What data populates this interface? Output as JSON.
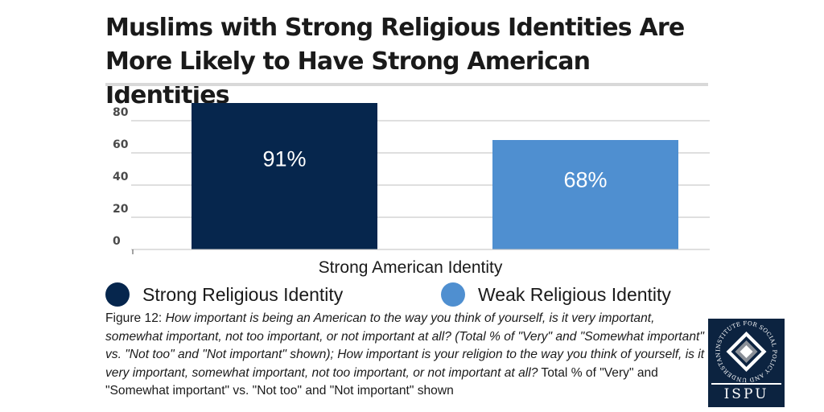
{
  "title": "Muslims with Strong Religious Identities Are More Likely to Have Strong American Identities",
  "chart_data": {
    "type": "bar",
    "categories": [
      "Strong American Identity"
    ],
    "series": [
      {
        "name": "Strong Religious Identity",
        "values": [
          91
        ],
        "label": "91%",
        "color": "#06264d"
      },
      {
        "name": "Weak Religious Identity",
        "values": [
          68
        ],
        "label": "68%",
        "color": "#4f8fd0"
      }
    ],
    "xlabel": "Strong American Identity",
    "ylabel": "",
    "ylim": [
      0,
      100
    ],
    "yticks": [
      0,
      20,
      40,
      60,
      80
    ],
    "grid": true,
    "legend": "bottom"
  },
  "caption": {
    "figure_label": "Figure 12",
    "question_text": "How important is being an American to the way you think of yourself, is it very important, somewhat important, not too important, or not important at all? (Total % of \"Very\" and \"Somewhat important\" vs. \"Not too\" and \"Not important\" shown); How important is your religion to the way you think of yourself, is it very important, somewhat important, not too important, or not important at all?",
    "tail_text": " Total % of  \"Very\" and \"Somewhat important\" vs. \"Not too\" and \"Not important\" shown"
  },
  "logo": {
    "name": "ISPU",
    "ring_text": "INSTITUTE FOR SOCIAL POLICY AND UNDERSTANDING"
  }
}
